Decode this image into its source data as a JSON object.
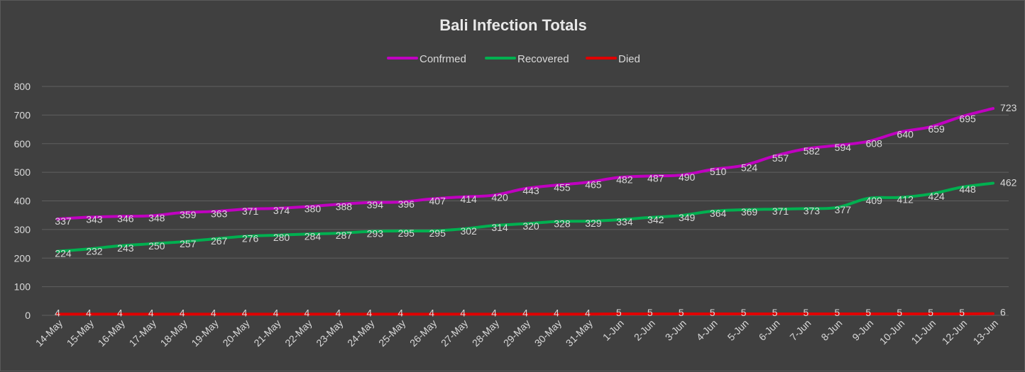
{
  "chart_data": {
    "type": "line",
    "title": "Bali Infection Totals",
    "xlabel": "",
    "ylabel": "",
    "ylim": [
      0,
      800
    ],
    "yticks": [
      0,
      100,
      200,
      300,
      400,
      500,
      600,
      700,
      800
    ],
    "grid": true,
    "legend_position": "top",
    "categories": [
      "14-May",
      "15-May",
      "16-May",
      "17-May",
      "18-May",
      "19-May",
      "20-May",
      "21-May",
      "22-May",
      "23-May",
      "24-May",
      "25-May",
      "26-May",
      "27-May",
      "28-May",
      "29-May",
      "30-May",
      "31-May",
      "1-Jun",
      "2-Jun",
      "3-Jun",
      "4-Jun",
      "5-Jun",
      "6-Jun",
      "7-Jun",
      "8-Jun",
      "9-Jun",
      "10-Jun",
      "11-Jun",
      "12-Jun",
      "13-Jun"
    ],
    "series": [
      {
        "name": "Confrmed",
        "color": "#c000c0",
        "values": [
          337,
          343,
          346,
          348,
          359,
          363,
          371,
          374,
          380,
          388,
          394,
          396,
          407,
          414,
          420,
          443,
          455,
          465,
          482,
          487,
          490,
          510,
          524,
          557,
          582,
          594,
          608,
          640,
          659,
          695,
          723
        ]
      },
      {
        "name": "Recovered",
        "color": "#00b050",
        "values": [
          224,
          232,
          243,
          250,
          257,
          267,
          276,
          280,
          284,
          287,
          293,
          295,
          295,
          302,
          314,
          320,
          328,
          329,
          334,
          342,
          349,
          364,
          369,
          371,
          373,
          377,
          409,
          412,
          424,
          448,
          462
        ]
      },
      {
        "name": "Died",
        "color": "#e00000",
        "values": [
          4,
          4,
          4,
          4,
          4,
          4,
          4,
          4,
          4,
          4,
          4,
          4,
          4,
          4,
          4,
          4,
          4,
          4,
          5,
          5,
          5,
          5,
          5,
          5,
          5,
          5,
          5,
          5,
          5,
          5,
          6
        ]
      }
    ]
  },
  "colors": {
    "background": "#404040",
    "gridline": "#5f5f5f",
    "text": "#d9d9d9"
  }
}
